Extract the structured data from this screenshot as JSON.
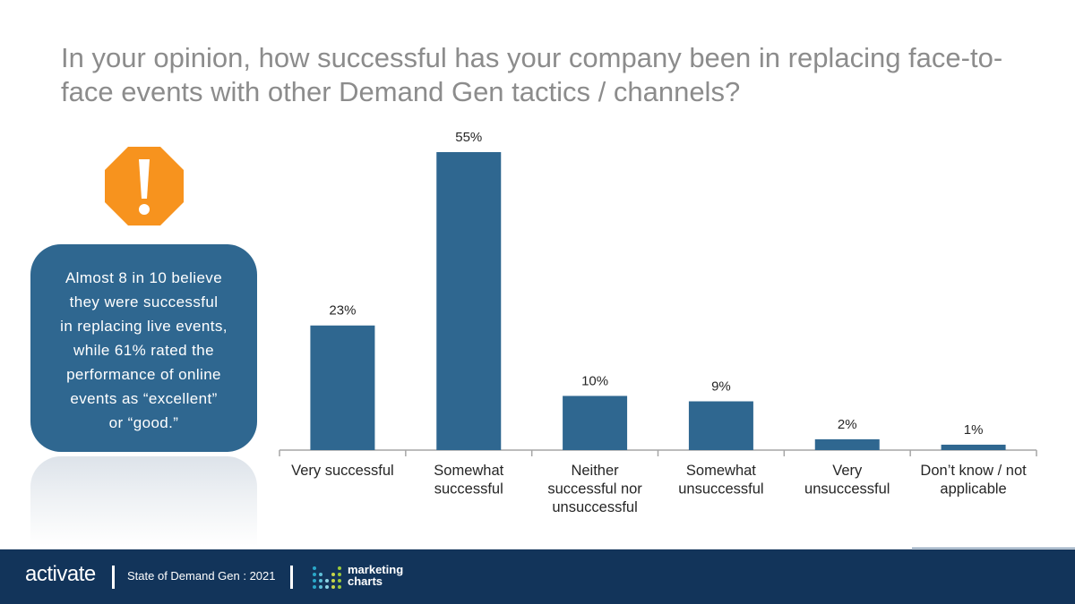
{
  "title": "In your opinion, how successful has your company been in replacing face-to-face events with other Demand Gen tactics / channels?",
  "callout": {
    "lines": [
      "Almost 8 in 10 believe",
      "they were successful",
      "in replacing live events,",
      "while 61% rated the",
      "performance of online",
      "events as “excellent”",
      "or “good.”"
    ]
  },
  "icons": {
    "warning": "exclamation-octagon-icon"
  },
  "colors": {
    "bar": "#2f6790",
    "warning": "#f7931e",
    "footer": "#12345a"
  },
  "chart_data": {
    "type": "bar",
    "categories": [
      [
        "Very successful"
      ],
      [
        "Somewhat",
        "successful"
      ],
      [
        "Neither",
        "successful nor",
        "unsuccessful"
      ],
      [
        "Somewhat",
        "unsuccessful"
      ],
      [
        "Very",
        "unsuccessful"
      ],
      [
        "Don’t know / not",
        "applicable"
      ]
    ],
    "values": [
      23,
      55,
      10,
      9,
      2,
      1
    ],
    "value_labels": [
      "23%",
      "55%",
      "10%",
      "9%",
      "2%",
      "1%"
    ],
    "unit": "%",
    "ylim": [
      0,
      60
    ],
    "grid": false,
    "legend": "none"
  },
  "footer": {
    "brand": "activate",
    "subtitle": "State of Demand Gen : 2021",
    "partner_line1": "marketing",
    "partner_line2": "charts"
  }
}
